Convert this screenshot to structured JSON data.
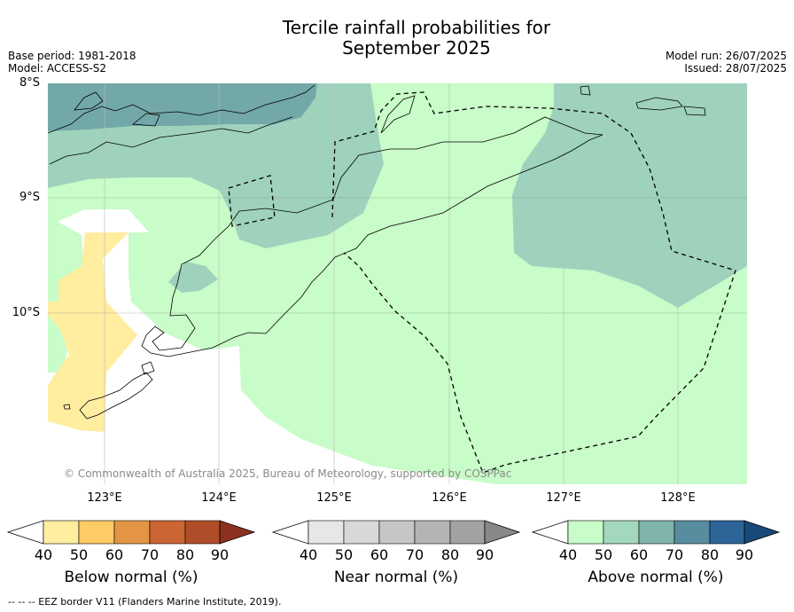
{
  "title_line1": "Tercile rainfall probabilities for",
  "title_line2": "September 2025",
  "base_period": "Base period: 1981-2018",
  "model": "Model: ACCESS-S2",
  "model_run": "Model run: 26/07/2025",
  "issued": "Issued: 28/07/2025",
  "lat_labels": [
    "8°S",
    "9°S",
    "10°S"
  ],
  "lon_labels": [
    "123°E",
    "124°E",
    "125°E",
    "126°E",
    "127°E",
    "128°E"
  ],
  "copyright": "© Commonwealth of Australia 2025, Bureau of Meteorology, supported by COSPPac",
  "colorbars": [
    {
      "label": "Below normal (%)",
      "ticks": [
        "40",
        "50",
        "60",
        "70",
        "80",
        "90"
      ],
      "colors": [
        "#ffffff",
        "#ffeda0",
        "#fecb64",
        "#e39545",
        "#cb6534",
        "#b04e2a",
        "#8c3020"
      ]
    },
    {
      "label": "Near normal (%)",
      "ticks": [
        "40",
        "50",
        "60",
        "70",
        "80",
        "90"
      ],
      "colors": [
        "#ffffff",
        "#e7e7e7",
        "#d8d8d8",
        "#c6c6c6",
        "#b4b4b4",
        "#a2a2a2",
        "#888888"
      ]
    },
    {
      "label": "Above normal (%)",
      "ticks": [
        "40",
        "50",
        "60",
        "70",
        "80",
        "90"
      ],
      "colors": [
        "#ffffff",
        "#c8fcc8",
        "#a3d8bd",
        "#80b5ac",
        "#578d9e",
        "#2d6599",
        "#19497a"
      ]
    }
  ],
  "footnote": "-- -- -- EEZ border V11 (Flanders Marine Institute, 2019).",
  "map_colors": {
    "above_40_50": "#c8fcc8",
    "above_50_60": "#9ed2bc",
    "above_60_70": "#73a8a8",
    "below_40_50": "#ffeda0",
    "ocean_white": "#ffffff"
  }
}
